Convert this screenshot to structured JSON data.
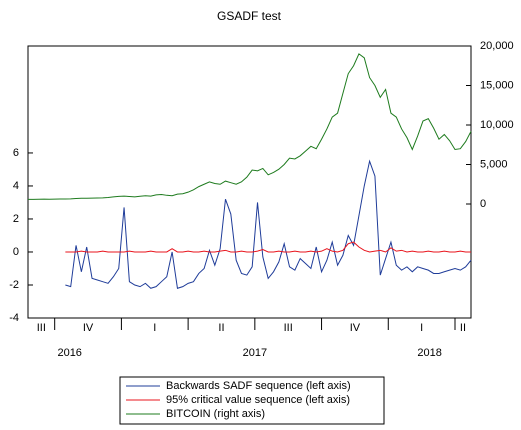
{
  "chart_data": {
    "type": "line",
    "title": "GSADF test",
    "x": [
      2016.65,
      2016.67,
      2016.69,
      2016.71,
      2016.73,
      2016.75,
      2016.77,
      2016.79,
      2016.81,
      2016.83,
      2016.85,
      2016.87,
      2016.89,
      2016.91,
      2016.93,
      2016.95,
      2016.97,
      2016.99,
      2017.01,
      2017.03,
      2017.05,
      2017.07,
      2017.09,
      2017.11,
      2017.13,
      2017.15,
      2017.17,
      2017.19,
      2017.21,
      2017.23,
      2017.25,
      2017.27,
      2017.29,
      2017.31,
      2017.33,
      2017.35,
      2017.37,
      2017.39,
      2017.41,
      2017.43,
      2017.45,
      2017.47,
      2017.49,
      2017.51,
      2017.53,
      2017.55,
      2017.57,
      2017.59,
      2017.61,
      2017.63,
      2017.65,
      2017.67,
      2017.69,
      2017.71,
      2017.73,
      2017.75,
      2017.77,
      2017.79,
      2017.81,
      2017.83,
      2017.85,
      2017.87,
      2017.89,
      2017.91,
      2017.93,
      2017.95,
      2017.97,
      2017.99,
      2018.01,
      2018.03,
      2018.05,
      2018.07,
      2018.09,
      2018.11,
      2018.13,
      2018.15,
      2018.17,
      2018.19,
      2018.21,
      2018.23,
      2018.25,
      2018.27,
      2018.29,
      2018.31
    ],
    "xlim": [
      2016.65,
      2018.31
    ],
    "xticks": [
      2016.75,
      2017,
      2017.25,
      2017.5,
      2017.75,
      2018,
      2018.25
    ],
    "quarter_labels": [
      "III",
      "IV",
      "I",
      "II",
      "III",
      "IV",
      "I",
      "II"
    ],
    "year_labels": [
      "2016",
      "2017",
      "2018"
    ],
    "ylim": [
      -4,
      12.48
    ],
    "yticks": [
      -4,
      -2,
      0,
      2,
      4,
      6
    ],
    "y2lim": [
      -14430,
      20000
    ],
    "y2ticks": [
      0,
      {
        "value": 5000,
        "label": "5,000"
      },
      {
        "value": 10000,
        "label": "10,000"
      },
      {
        "value": 15000,
        "label": "15,000"
      },
      {
        "value": 20000,
        "label": "20,000"
      }
    ],
    "series": [
      {
        "name": "Backwards SADF sequence (left axis)",
        "color": "#1f3c99",
        "values": [
          null,
          null,
          null,
          null,
          null,
          null,
          null,
          -2.0,
          -2.1,
          0.4,
          -1.2,
          0.3,
          -1.6,
          -1.7,
          -1.8,
          -1.9,
          -1.5,
          -1.0,
          2.7,
          -1.8,
          -2.0,
          -2.1,
          -1.9,
          -2.2,
          -2.1,
          -1.8,
          -1.5,
          0.0,
          -2.2,
          -2.1,
          -1.9,
          -1.8,
          -1.3,
          -1.0,
          0.1,
          -0.8,
          0.2,
          3.2,
          2.3,
          -0.5,
          -1.3,
          -1.4,
          -0.9,
          3.0,
          -0.3,
          -1.6,
          -1.2,
          -0.6,
          0.5,
          -0.9,
          -1.1,
          -0.4,
          -0.7,
          -1.0,
          0.3,
          -1.2,
          -0.5,
          0.6,
          -0.8,
          -0.2,
          1.0,
          0.4,
          2.2,
          4.0,
          5.5,
          4.6,
          -1.4,
          -0.4,
          0.6,
          -0.8,
          -1.1,
          -0.9,
          -1.2,
          -0.9,
          -1.0,
          -1.1,
          -1.3,
          -1.3,
          -1.2,
          -1.1,
          -1.0,
          -1.1,
          -0.9,
          -0.5
        ]
      },
      {
        "name": "95% critical value sequence (left axis)",
        "color": "#e8141c",
        "values": [
          null,
          null,
          null,
          null,
          null,
          null,
          null,
          0.0,
          0.0,
          0.0,
          0.05,
          0.0,
          0.0,
          0.0,
          0.05,
          0.0,
          0.0,
          0.0,
          0.0,
          0.05,
          0.0,
          0.0,
          0.0,
          0.05,
          0.0,
          0.0,
          0.0,
          0.2,
          0.0,
          0.0,
          0.05,
          0.0,
          0.0,
          0.05,
          0.0,
          0.0,
          0.05,
          0.1,
          0.0,
          0.0,
          0.05,
          0.0,
          0.0,
          0.05,
          0.15,
          0.0,
          0.0,
          0.05,
          0.0,
          0.0,
          0.05,
          0.0,
          0.0,
          0.05,
          0.0,
          0.05,
          0.2,
          0.05,
          0.0,
          0.1,
          0.5,
          0.6,
          0.3,
          0.1,
          0.0,
          0.05,
          0.1,
          0.0,
          0.25,
          0.05,
          0.1,
          0.0,
          0.05,
          0.0,
          0.0,
          0.05,
          0.0,
          0.0,
          0.05,
          0.0,
          0.0,
          0.05,
          0.0,
          0.0
        ]
      },
      {
        "name": "BITCOIN (right axis)",
        "color": "#1e7b1e",
        "axis": "y2",
        "values": [
          580,
          590,
          600,
          610,
          600,
          620,
          630,
          640,
          650,
          700,
          720,
          730,
          740,
          760,
          780,
          830,
          900,
          960,
          1000,
          950,
          900,
          980,
          1050,
          1000,
          1150,
          1200,
          1100,
          1050,
          1250,
          1300,
          1500,
          1800,
          2200,
          2500,
          2800,
          2600,
          2500,
          2900,
          2700,
          2500,
          2800,
          3400,
          4300,
          4200,
          4500,
          3700,
          4000,
          4400,
          5000,
          5800,
          5700,
          6100,
          6700,
          7300,
          7000,
          8200,
          9500,
          11000,
          11500,
          14000,
          16500,
          17500,
          19000,
          18500,
          16000,
          15000,
          13500,
          14500,
          11500,
          11000,
          9500,
          8400,
          6900,
          8600,
          10500,
          10800,
          9600,
          8200,
          8800,
          8000,
          6900,
          7000,
          7900,
          9200
        ]
      }
    ]
  }
}
